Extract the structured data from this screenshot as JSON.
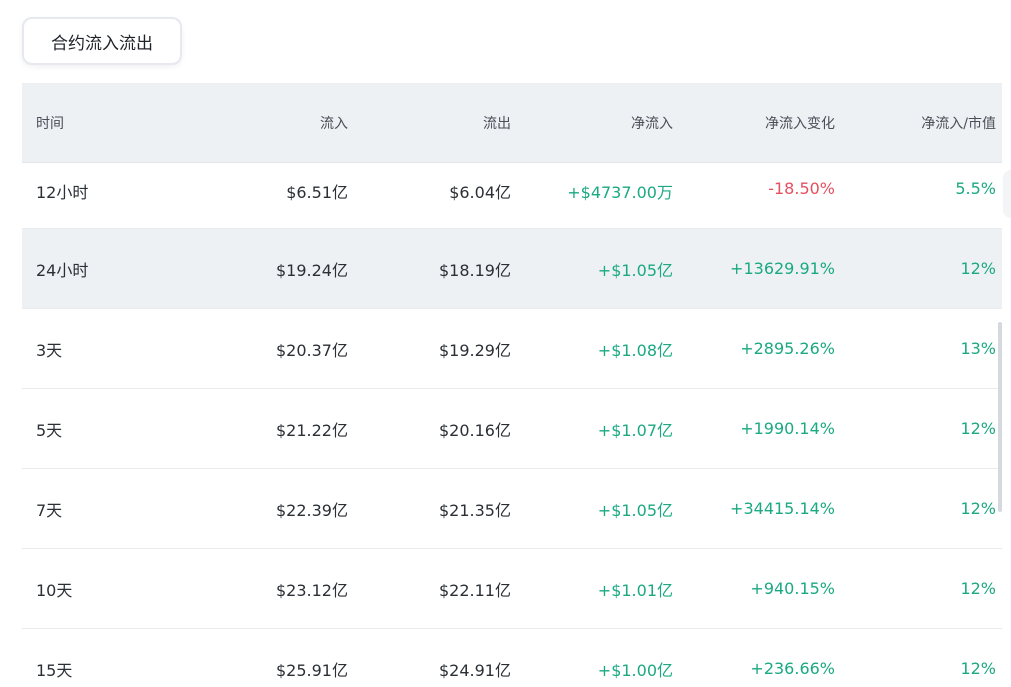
{
  "tab": {
    "label": "合约流入流出"
  },
  "table": {
    "headers": [
      "时间",
      "流入",
      "流出",
      "净流入",
      "净流入变化",
      "净流入/市值"
    ],
    "rows": [
      {
        "time": "12小时",
        "inflow": "$6.51亿",
        "outflow": "$6.04亿",
        "net": "+$4737.00万",
        "change": "-18.50%",
        "ratio": "5.5%"
      },
      {
        "time": "24小时",
        "inflow": "$19.24亿",
        "outflow": "$18.19亿",
        "net": "+$1.05亿",
        "change": "+13629.91%",
        "ratio": "12%"
      },
      {
        "time": "3天",
        "inflow": "$20.37亿",
        "outflow": "$19.29亿",
        "net": "+$1.08亿",
        "change": "+2895.26%",
        "ratio": "13%"
      },
      {
        "time": "5天",
        "inflow": "$21.22亿",
        "outflow": "$20.16亿",
        "net": "+$1.07亿",
        "change": "+1990.14%",
        "ratio": "12%"
      },
      {
        "time": "7天",
        "inflow": "$22.39亿",
        "outflow": "$21.35亿",
        "net": "+$1.05亿",
        "change": "+34415.14%",
        "ratio": "12%"
      },
      {
        "time": "10天",
        "inflow": "$23.12亿",
        "outflow": "$22.11亿",
        "net": "+$1.01亿",
        "change": "+940.15%",
        "ratio": "12%"
      },
      {
        "time": "15天",
        "inflow": "$25.91亿",
        "outflow": "$24.91亿",
        "net": "+$1.00亿",
        "change": "+236.66%",
        "ratio": "12%"
      }
    ]
  },
  "colors": {
    "positive": "#1aa982",
    "negative": "#e5505f",
    "header_bg": "#eef1f4"
  }
}
